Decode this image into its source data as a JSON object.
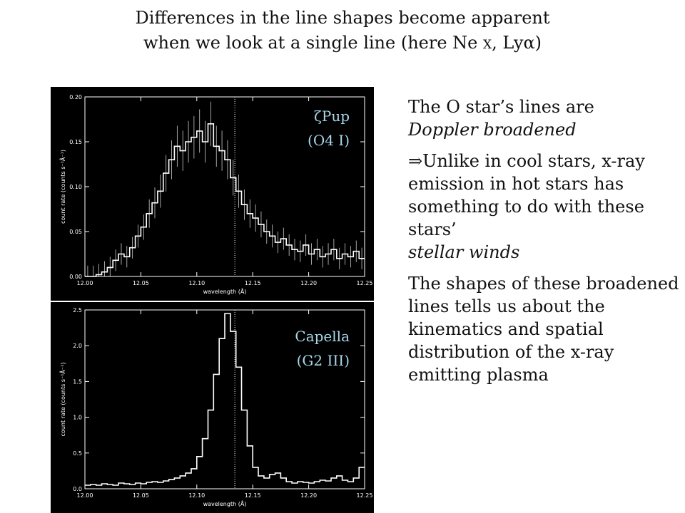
{
  "title": {
    "line1": "Differences in the line shapes become apparent",
    "line2_pre": "when we look at a single line (here Ne ",
    "line2_ion": "X",
    "line2_post": ", Lyα)"
  },
  "colors": {
    "background": "#ffffff",
    "panel": "#000000",
    "plot_line": "#ffffff",
    "label": "#a7d8ea"
  },
  "chart_data": [
    {
      "type": "line",
      "star": "ζPup",
      "spectral_type": "(O4 I)",
      "xlabel": "wavelength (Å)",
      "ylabel": "count rate (counts s⁻¹Å⁻¹)",
      "xlim": [
        12.0,
        12.25
      ],
      "ylim": [
        0.0,
        0.2
      ],
      "xticks": [
        "12.00",
        "12.05",
        "12.10",
        "12.15",
        "12.20",
        "12.25"
      ],
      "yticks": [
        "0.00",
        "0.05",
        "0.10",
        "0.15",
        "0.20"
      ],
      "reference_line_x": 12.134,
      "x": [
        12.0,
        12.005,
        12.01,
        12.015,
        12.02,
        12.025,
        12.03,
        12.035,
        12.04,
        12.045,
        12.05,
        12.055,
        12.06,
        12.065,
        12.07,
        12.075,
        12.08,
        12.085,
        12.09,
        12.095,
        12.1,
        12.105,
        12.11,
        12.115,
        12.12,
        12.125,
        12.13,
        12.135,
        12.14,
        12.145,
        12.15,
        12.155,
        12.16,
        12.165,
        12.17,
        12.175,
        12.18,
        12.185,
        12.19,
        12.195,
        12.2,
        12.205,
        12.21,
        12.215,
        12.22,
        12.225,
        12.23,
        12.235,
        12.24,
        12.245
      ],
      "values": [
        0.0,
        0.0,
        0.002,
        0.005,
        0.01,
        0.018,
        0.025,
        0.022,
        0.032,
        0.045,
        0.055,
        0.07,
        0.082,
        0.095,
        0.115,
        0.13,
        0.145,
        0.14,
        0.15,
        0.155,
        0.162,
        0.15,
        0.17,
        0.145,
        0.14,
        0.13,
        0.11,
        0.095,
        0.08,
        0.07,
        0.065,
        0.058,
        0.05,
        0.045,
        0.038,
        0.042,
        0.035,
        0.03,
        0.028,
        0.035,
        0.025,
        0.03,
        0.022,
        0.025,
        0.03,
        0.02,
        0.025,
        0.022,
        0.028,
        0.02
      ]
    },
    {
      "type": "line",
      "star": "Capella",
      "spectral_type": "(G2 III)",
      "xlabel": "wavelength (Å)",
      "ylabel": "count rate (counts s⁻¹Å⁻¹)",
      "xlim": [
        12.0,
        12.25
      ],
      "ylim": [
        0.0,
        2.5
      ],
      "xticks": [
        "12.00",
        "12.05",
        "12.10",
        "12.15",
        "12.20",
        "12.25"
      ],
      "yticks": [
        "0.0",
        "0.5",
        "1.0",
        "1.5",
        "2.0",
        "2.5"
      ],
      "reference_line_x": 12.134,
      "x": [
        12.0,
        12.005,
        12.01,
        12.015,
        12.02,
        12.025,
        12.03,
        12.035,
        12.04,
        12.045,
        12.05,
        12.055,
        12.06,
        12.065,
        12.07,
        12.075,
        12.08,
        12.085,
        12.09,
        12.095,
        12.1,
        12.105,
        12.11,
        12.115,
        12.12,
        12.125,
        12.13,
        12.135,
        12.14,
        12.145,
        12.15,
        12.155,
        12.16,
        12.165,
        12.17,
        12.175,
        12.18,
        12.185,
        12.19,
        12.195,
        12.2,
        12.205,
        12.21,
        12.215,
        12.22,
        12.225,
        12.23,
        12.235,
        12.24,
        12.245
      ],
      "values": [
        0.05,
        0.06,
        0.05,
        0.07,
        0.06,
        0.05,
        0.08,
        0.07,
        0.06,
        0.08,
        0.07,
        0.09,
        0.1,
        0.09,
        0.11,
        0.13,
        0.15,
        0.18,
        0.22,
        0.28,
        0.45,
        0.7,
        1.1,
        1.6,
        2.1,
        2.45,
        2.2,
        1.7,
        1.1,
        0.6,
        0.3,
        0.18,
        0.15,
        0.2,
        0.22,
        0.15,
        0.1,
        0.08,
        0.1,
        0.09,
        0.08,
        0.1,
        0.12,
        0.11,
        0.15,
        0.18,
        0.12,
        0.1,
        0.15,
        0.3
      ]
    }
  ],
  "side": {
    "p1_a": "The O star’s lines are",
    "p1_b": "Doppler broadened",
    "p2_symbol": "⇒",
    "p2_a": "Unlike in cool stars, x-ray emission in hot stars has something to do with these stars’",
    "p2_b": "stellar winds",
    "p3": "The shapes of these broadened lines tells us about the kinematics and spatial distribution of the x-ray emitting plasma"
  }
}
